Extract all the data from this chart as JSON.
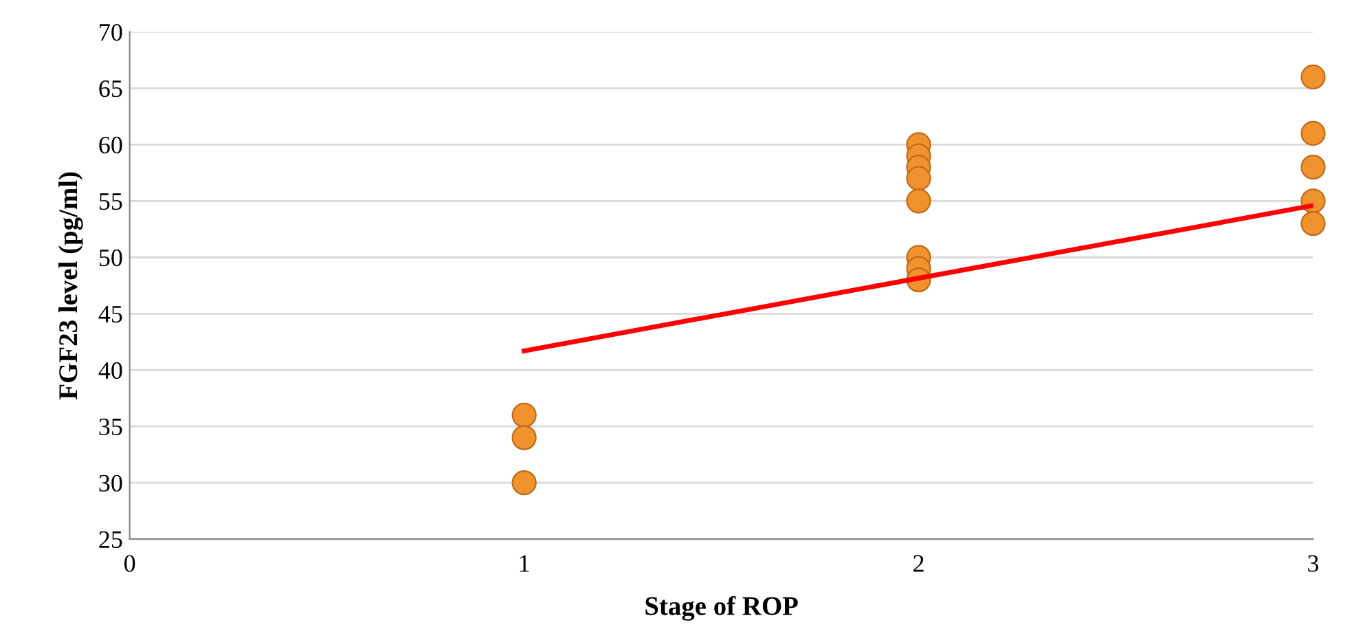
{
  "chart_data": {
    "type": "scatter",
    "xlabel": "Stage of ROP",
    "ylabel": "FGF23 level (pg/ml)",
    "xlim": [
      0,
      3
    ],
    "xticks": [
      0,
      1,
      2,
      3
    ],
    "ylim": [
      25,
      70
    ],
    "yticks": [
      25,
      30,
      35,
      40,
      45,
      50,
      55,
      60,
      65,
      70
    ],
    "grid": "y",
    "series": [
      {
        "marker": "circle",
        "color": "#f0922e",
        "x": [
          1,
          1,
          1,
          2,
          2,
          2,
          2,
          2,
          2,
          2,
          2,
          3,
          3,
          3,
          3,
          3
        ],
        "values": [
          36,
          34,
          30,
          60,
          59,
          58,
          57,
          55,
          50,
          49,
          48,
          66,
          61,
          58,
          55,
          53
        ]
      },
      {
        "type": "line",
        "color": "#ff0000",
        "x": [
          1,
          3
        ],
        "values": [
          41.7,
          54.6
        ],
        "marker": "none",
        "line_style": "solid"
      }
    ]
  }
}
